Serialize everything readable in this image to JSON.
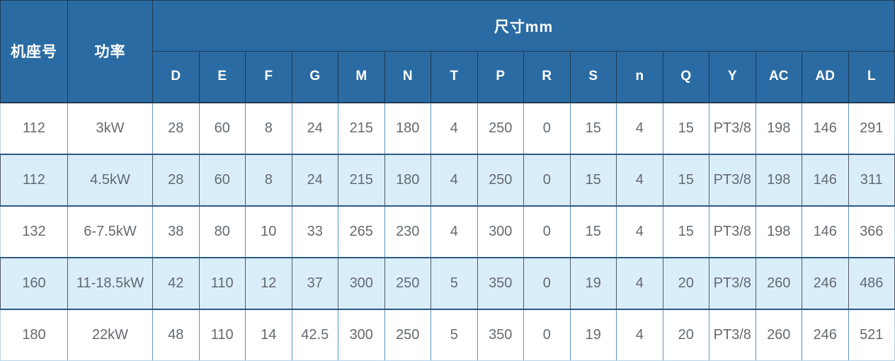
{
  "chart_data": {
    "type": "table",
    "title": "尺寸mm",
    "header": {
      "frame_label": "机座号",
      "power_label": "功率",
      "dims_label": "尺寸mm",
      "dim_columns": [
        "D",
        "E",
        "F",
        "G",
        "M",
        "N",
        "T",
        "P",
        "R",
        "S",
        "n",
        "Q",
        "Y",
        "AC",
        "AD",
        "L"
      ]
    },
    "rows": [
      {
        "frame": "112",
        "power": "3kW",
        "dims": [
          "28",
          "60",
          "8",
          "24",
          "215",
          "180",
          "4",
          "250",
          "0",
          "15",
          "4",
          "15",
          "PT3/8",
          "198",
          "146",
          "291"
        ]
      },
      {
        "frame": "112",
        "power": "4.5kW",
        "dims": [
          "28",
          "60",
          "8",
          "24",
          "215",
          "180",
          "4",
          "250",
          "0",
          "15",
          "4",
          "15",
          "PT3/8",
          "198",
          "146",
          "311"
        ]
      },
      {
        "frame": "132",
        "power": "6-7.5kW",
        "dims": [
          "38",
          "80",
          "10",
          "33",
          "265",
          "230",
          "4",
          "300",
          "0",
          "15",
          "4",
          "15",
          "PT3/8",
          "198",
          "146",
          "366"
        ]
      },
      {
        "frame": "160",
        "power": "11-18.5kW",
        "dims": [
          "42",
          "110",
          "12",
          "37",
          "300",
          "250",
          "5",
          "350",
          "0",
          "19",
          "4",
          "20",
          "PT3/8",
          "260",
          "246",
          "486"
        ]
      },
      {
        "frame": "180",
        "power": "22kW",
        "dims": [
          "48",
          "110",
          "14",
          "42.5",
          "300",
          "250",
          "5",
          "350",
          "0",
          "19",
          "4",
          "20",
          "PT3/8",
          "260",
          "246",
          "521"
        ]
      }
    ]
  },
  "colors": {
    "header_bg": "#2b6ba3",
    "header_text": "#ffffff",
    "header_border": "#1f3a52",
    "stripe_bg": "#daeefa",
    "row_separator": "#2d5a84",
    "v_border": "#5d94c6",
    "v_border_stripe": "#4e5a64",
    "body_text": "#646a70",
    "outer_light": "#b5d4ea"
  }
}
